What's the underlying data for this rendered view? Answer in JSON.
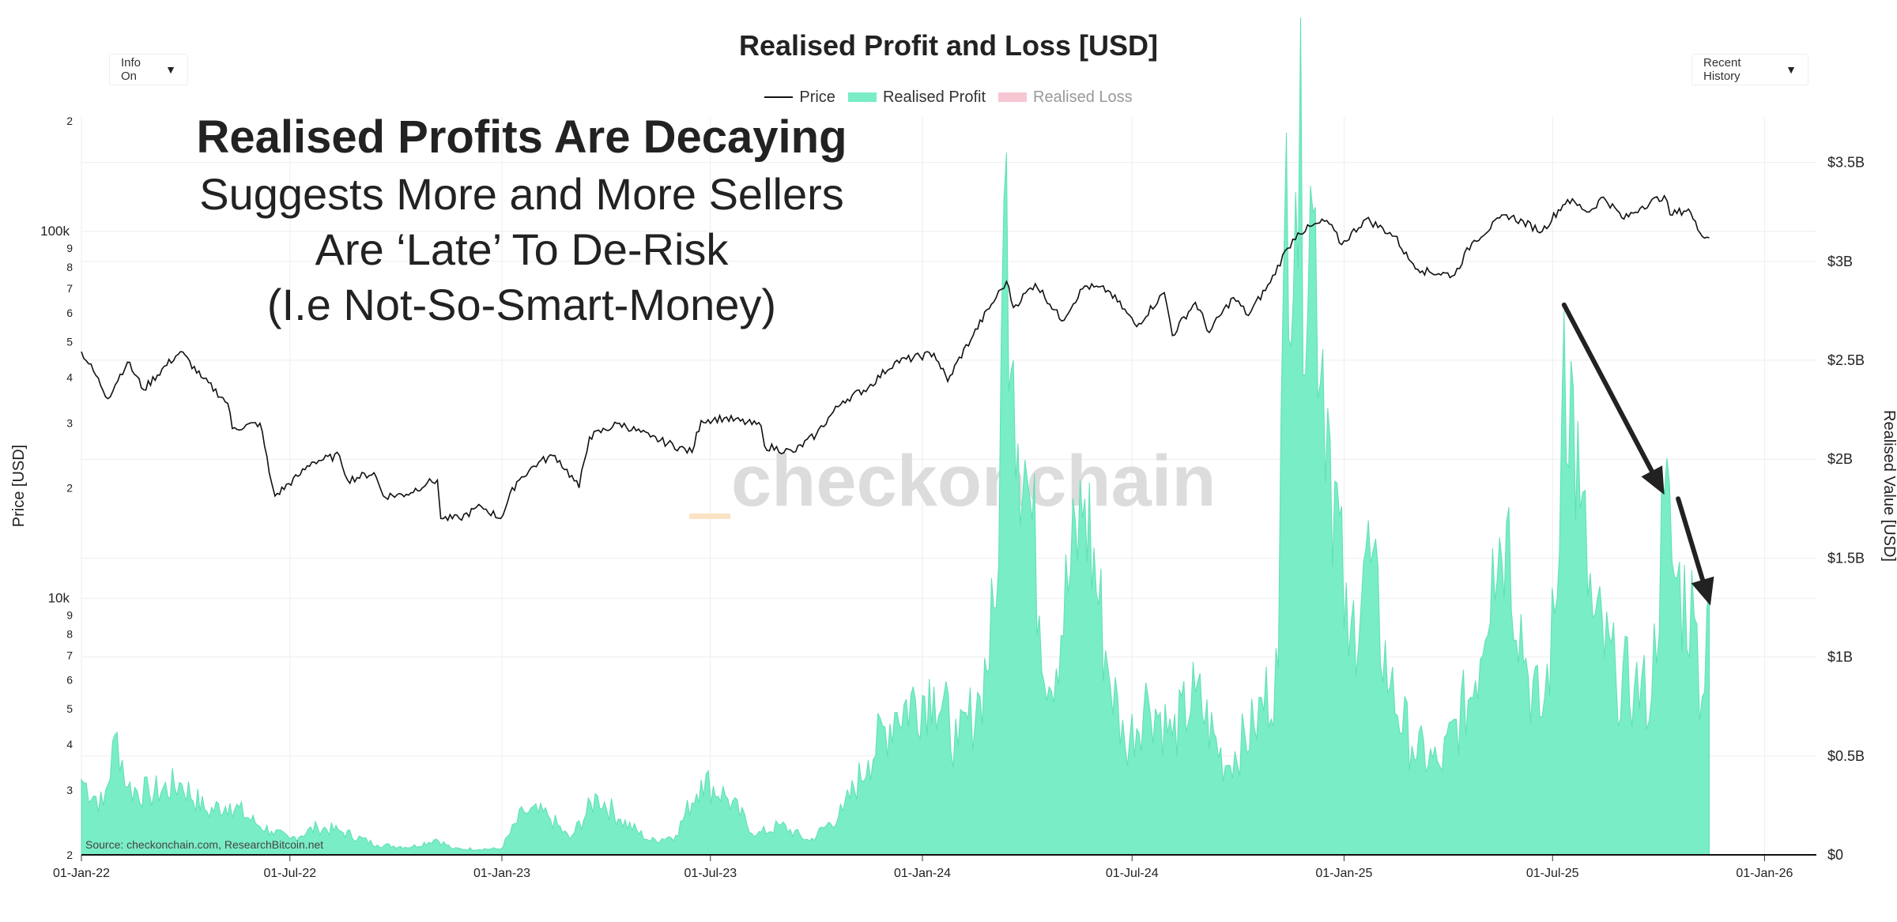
{
  "controls": {
    "info_label": "Info On",
    "range_label": "Recent History",
    "caret": "▼"
  },
  "annotation": {
    "headline": "Realised Profits Are Decaying",
    "line1": "Suggests More and More Sellers",
    "line2": "Are ‘Late’ To De-Risk",
    "line3": "(I.e Not-So-Smart-Money)"
  },
  "colors": {
    "profit_fill": "#79edc5",
    "profit_line": "#5fe0b4",
    "loss": "#f7b8c8",
    "price": "#111111",
    "grid": "#eeeeee",
    "watermark_text": "#dcdcdc",
    "watermark_accent": "#fbe3c4",
    "arrow": "#222222"
  },
  "chart_data": {
    "type": "area",
    "title": "Realised Profit and Loss [USD]",
    "source": "Source: checkonchain.com, ResearchBitcoin.net",
    "watermark": "checkonchain",
    "legend": [
      {
        "name": "Price",
        "style": "line"
      },
      {
        "name": "Realised Profit",
        "style": "area"
      },
      {
        "name": "Realised Loss",
        "style": "area",
        "hidden": true
      }
    ],
    "x_axis": {
      "type": "date",
      "range": [
        "2022-01-01",
        "2026-02-15"
      ],
      "ticks": [
        "01-Jan-22",
        "01-Jul-22",
        "01-Jan-23",
        "01-Jul-23",
        "01-Jan-24",
        "01-Jul-24",
        "01-Jan-25",
        "01-Jul-25",
        "01-Jan-26"
      ],
      "tick_dates": [
        "2022-01-01",
        "2022-07-01",
        "2023-01-01",
        "2023-07-01",
        "2024-01-01",
        "2024-07-01",
        "2025-01-01",
        "2025-07-01",
        "2026-01-01"
      ]
    },
    "y_left": {
      "label": "Price [USD]",
      "scale": "log",
      "range": [
        2000,
        205000
      ],
      "ticks": [
        {
          "v": 2000,
          "t": "2"
        },
        {
          "v": 3000,
          "t": "3"
        },
        {
          "v": 4000,
          "t": "4"
        },
        {
          "v": 5000,
          "t": "5"
        },
        {
          "v": 6000,
          "t": "6"
        },
        {
          "v": 7000,
          "t": "7"
        },
        {
          "v": 8000,
          "t": "8"
        },
        {
          "v": 9000,
          "t": "9"
        },
        {
          "v": 10000,
          "t": "10k"
        },
        {
          "v": 20000,
          "t": "2"
        },
        {
          "v": 30000,
          "t": "3"
        },
        {
          "v": 40000,
          "t": "4"
        },
        {
          "v": 50000,
          "t": "5"
        },
        {
          "v": 60000,
          "t": "6"
        },
        {
          "v": 70000,
          "t": "7"
        },
        {
          "v": 80000,
          "t": "8"
        },
        {
          "v": 90000,
          "t": "9"
        },
        {
          "v": 100000,
          "t": "100k"
        },
        {
          "v": 200000,
          "t": "2"
        }
      ]
    },
    "y_right": {
      "label": "Realised Value [USD]",
      "scale": "linear",
      "range": [
        0,
        3.73
      ],
      "unit": "billion USD",
      "ticks": [
        {
          "v": 0,
          "t": "$0"
        },
        {
          "v": 0.5,
          "t": "$0.5B"
        },
        {
          "v": 1,
          "t": "$1B"
        },
        {
          "v": 1.5,
          "t": "$1.5B"
        },
        {
          "v": 2,
          "t": "$2B"
        },
        {
          "v": 2.5,
          "t": "$2.5B"
        },
        {
          "v": 3,
          "t": "$3B"
        },
        {
          "v": 3.5,
          "t": "$3.5B"
        }
      ]
    },
    "series": [
      {
        "name": "Price",
        "axis": "left",
        "points": [
          [
            "2022-01-01",
            47000
          ],
          [
            "2022-01-24",
            35000
          ],
          [
            "2022-02-10",
            44000
          ],
          [
            "2022-02-24",
            37000
          ],
          [
            "2022-03-28",
            47000
          ],
          [
            "2022-04-15",
            40000
          ],
          [
            "2022-05-08",
            34000
          ],
          [
            "2022-05-12",
            29000
          ],
          [
            "2022-06-05",
            30000
          ],
          [
            "2022-06-13",
            22000
          ],
          [
            "2022-06-18",
            19000
          ],
          [
            "2022-07-08",
            21500
          ],
          [
            "2022-07-20",
            23500
          ],
          [
            "2022-08-13",
            24500
          ],
          [
            "2022-08-20",
            21000
          ],
          [
            "2022-09-12",
            22000
          ],
          [
            "2022-09-20",
            19000
          ],
          [
            "2022-10-10",
            19200
          ],
          [
            "2022-10-28",
            20600
          ],
          [
            "2022-11-06",
            21000
          ],
          [
            "2022-11-09",
            16500
          ],
          [
            "2022-11-25",
            16500
          ],
          [
            "2022-12-14",
            17800
          ],
          [
            "2022-12-31",
            16500
          ],
          [
            "2023-01-14",
            20800
          ],
          [
            "2023-02-02",
            23500
          ],
          [
            "2023-02-16",
            24500
          ],
          [
            "2023-03-09",
            20000
          ],
          [
            "2023-03-18",
            27500
          ],
          [
            "2023-04-13",
            30000
          ],
          [
            "2023-05-10",
            27500
          ],
          [
            "2023-06-15",
            25000
          ],
          [
            "2023-06-23",
            30500
          ],
          [
            "2023-07-13",
            31000
          ],
          [
            "2023-08-14",
            29500
          ],
          [
            "2023-08-17",
            26000
          ],
          [
            "2023-09-11",
            25000
          ],
          [
            "2023-10-01",
            28000
          ],
          [
            "2023-10-24",
            34500
          ],
          [
            "2023-11-15",
            37500
          ],
          [
            "2023-12-08",
            44000
          ],
          [
            "2024-01-11",
            46500
          ],
          [
            "2024-01-23",
            39000
          ],
          [
            "2024-02-14",
            52000
          ],
          [
            "2024-03-05",
            66000
          ],
          [
            "2024-03-14",
            73000
          ],
          [
            "2024-03-20",
            62000
          ],
          [
            "2024-04-08",
            72000
          ],
          [
            "2024-05-01",
            57000
          ],
          [
            "2024-05-21",
            71000
          ],
          [
            "2024-06-10",
            69000
          ],
          [
            "2024-07-05",
            55000
          ],
          [
            "2024-07-29",
            68000
          ],
          [
            "2024-08-05",
            52000
          ],
          [
            "2024-08-25",
            64000
          ],
          [
            "2024-09-06",
            53000
          ],
          [
            "2024-09-27",
            66000
          ],
          [
            "2024-10-10",
            59000
          ],
          [
            "2024-10-29",
            72500
          ],
          [
            "2024-11-13",
            90000
          ],
          [
            "2024-11-22",
            99000
          ],
          [
            "2024-12-17",
            107000
          ],
          [
            "2024-12-30",
            92000
          ],
          [
            "2025-01-20",
            108000
          ],
          [
            "2025-02-14",
            97000
          ],
          [
            "2025-02-26",
            84000
          ],
          [
            "2025-03-10",
            78000
          ],
          [
            "2025-04-07",
            76000
          ],
          [
            "2025-04-22",
            93000
          ],
          [
            "2025-05-22",
            111000
          ],
          [
            "2025-06-22",
            100000
          ],
          [
            "2025-07-14",
            122000
          ],
          [
            "2025-08-02",
            113000
          ],
          [
            "2025-08-14",
            124000
          ],
          [
            "2025-09-01",
            108000
          ],
          [
            "2025-09-17",
            117000
          ],
          [
            "2025-10-06",
            125000
          ],
          [
            "2025-10-11",
            111000
          ],
          [
            "2025-10-27",
            115000
          ],
          [
            "2025-11-04",
            101000
          ],
          [
            "2025-11-14",
            96000
          ]
        ]
      },
      {
        "name": "Realised Profit",
        "axis": "right",
        "points": [
          [
            "2022-01-01",
            0.38
          ],
          [
            "2022-01-20",
            0.25
          ],
          [
            "2022-02-01",
            0.62
          ],
          [
            "2022-02-10",
            0.34
          ],
          [
            "2022-03-01",
            0.31
          ],
          [
            "2022-03-29",
            0.36
          ],
          [
            "2022-04-20",
            0.22
          ],
          [
            "2022-05-10",
            0.26
          ],
          [
            "2022-06-01",
            0.16
          ],
          [
            "2022-06-15",
            0.12
          ],
          [
            "2022-07-01",
            0.08
          ],
          [
            "2022-07-25",
            0.14
          ],
          [
            "2022-08-14",
            0.12
          ],
          [
            "2022-09-15",
            0.05
          ],
          [
            "2022-10-15",
            0.04
          ],
          [
            "2022-11-05",
            0.08
          ],
          [
            "2022-11-20",
            0.03
          ],
          [
            "2022-12-31",
            0.03
          ],
          [
            "2023-01-20",
            0.22
          ],
          [
            "2023-02-10",
            0.2
          ],
          [
            "2023-03-01",
            0.08
          ],
          [
            "2023-03-25",
            0.3
          ],
          [
            "2023-04-14",
            0.18
          ],
          [
            "2023-05-10",
            0.07
          ],
          [
            "2023-06-01",
            0.1
          ],
          [
            "2023-06-23",
            0.38
          ],
          [
            "2023-07-14",
            0.3
          ],
          [
            "2023-08-10",
            0.1
          ],
          [
            "2023-08-31",
            0.15
          ],
          [
            "2023-09-25",
            0.07
          ],
          [
            "2023-10-24",
            0.22
          ],
          [
            "2023-11-15",
            0.48
          ],
          [
            "2023-12-08",
            0.72
          ],
          [
            "2024-01-11",
            0.85
          ],
          [
            "2024-02-01",
            0.55
          ],
          [
            "2024-02-20",
            0.8
          ],
          [
            "2024-03-05",
            1.25
          ],
          [
            "2024-03-14",
            3.55
          ],
          [
            "2024-03-20",
            2.5
          ],
          [
            "2024-04-01",
            1.9
          ],
          [
            "2024-04-20",
            0.85
          ],
          [
            "2024-05-21",
            1.8
          ],
          [
            "2024-06-10",
            0.95
          ],
          [
            "2024-06-25",
            0.55
          ],
          [
            "2024-07-15",
            0.8
          ],
          [
            "2024-08-05",
            0.6
          ],
          [
            "2024-08-25",
            0.82
          ],
          [
            "2024-09-20",
            0.45
          ],
          [
            "2024-10-15",
            0.65
          ],
          [
            "2024-11-05",
            0.95
          ],
          [
            "2024-11-12",
            3.65
          ],
          [
            "2024-11-20",
            3.35
          ],
          [
            "2024-12-05",
            3.25
          ],
          [
            "2024-12-20",
            2.1
          ],
          [
            "2025-01-05",
            1.0
          ],
          [
            "2025-01-20",
            1.55
          ],
          [
            "2025-02-10",
            0.85
          ],
          [
            "2025-03-01",
            0.55
          ],
          [
            "2025-03-25",
            0.45
          ],
          [
            "2025-04-25",
            0.88
          ],
          [
            "2025-05-10",
            1.55
          ],
          [
            "2025-05-22",
            1.68
          ],
          [
            "2025-06-10",
            0.9
          ],
          [
            "2025-06-22",
            0.7
          ],
          [
            "2025-07-05",
            1.3
          ],
          [
            "2025-07-11",
            2.75
          ],
          [
            "2025-07-25",
            1.75
          ],
          [
            "2025-08-05",
            1.2
          ],
          [
            "2025-08-25",
            0.9
          ],
          [
            "2025-09-10",
            0.85
          ],
          [
            "2025-09-25",
            0.8
          ],
          [
            "2025-10-06",
            1.82
          ],
          [
            "2025-10-15",
            1.4
          ],
          [
            "2025-11-01",
            1.2
          ],
          [
            "2025-11-08",
            0.8
          ],
          [
            "2025-11-14",
            1.35
          ]
        ]
      }
    ],
    "annotations": [
      {
        "type": "arrow",
        "from": [
          "2025-07-11",
          2.78
        ],
        "to": [
          "2025-10-06",
          1.82
        ]
      },
      {
        "type": "arrow",
        "from": [
          "2025-10-18",
          1.8
        ],
        "to": [
          "2025-11-15",
          1.26
        ]
      }
    ]
  }
}
